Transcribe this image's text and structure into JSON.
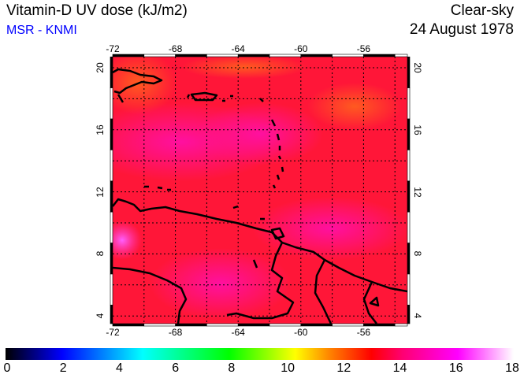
{
  "header": {
    "title": "Vitamin-D UV dose (kJ/m2)",
    "source": "MSR - KNMI",
    "sky": "Clear-sky",
    "date": "24 August 1978"
  },
  "map": {
    "lon_ticks": [
      "-72",
      "-68",
      "-64",
      "-60",
      "-56"
    ],
    "lat_ticks": [
      "20",
      "16",
      "12",
      "8",
      "4"
    ],
    "lon_range": [
      -72,
      -53.2
    ],
    "lat_range": [
      3.5,
      20.7
    ]
  },
  "colorbar": {
    "ticks": [
      "0",
      "2",
      "4",
      "6",
      "8",
      "10",
      "12",
      "14",
      "16",
      "18"
    ],
    "min": 0,
    "max": 18,
    "units": "kJ/m2"
  }
}
